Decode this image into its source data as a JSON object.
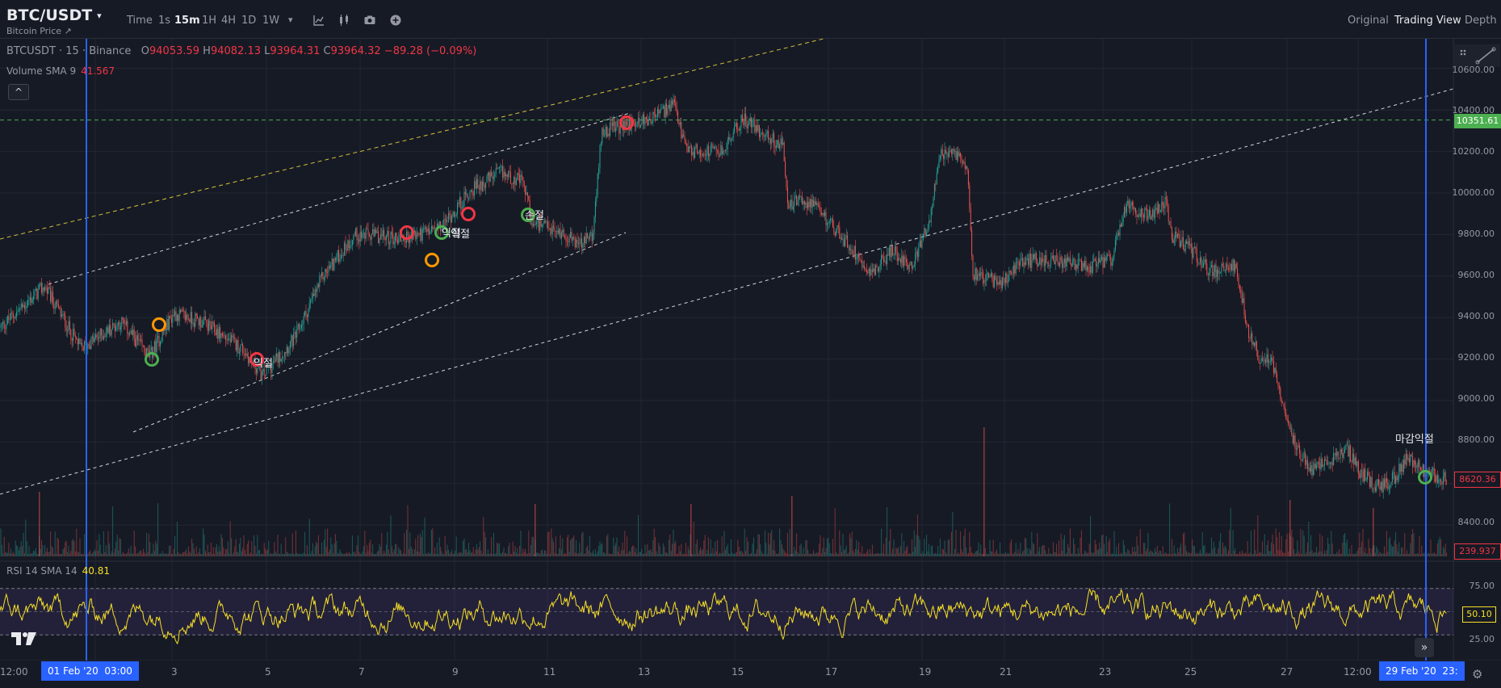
{
  "header": {
    "symbol": "BTC/USDT",
    "caret": "▾",
    "subtitle": "Bitcoin Price ↗",
    "timeframes": [
      "Time",
      "1s",
      "15m",
      "1H",
      "4H",
      "1D",
      "1W"
    ],
    "active_timeframe": "15m",
    "more_caret": "▾",
    "right_tabs": [
      "Original",
      "Trading View",
      "Depth"
    ],
    "active_right_tab": "Trading View"
  },
  "legend": {
    "name": "BTCUSDT · 15 · Binance",
    "o_key": "O",
    "o_val": "94053.59",
    "h_key": "H",
    "h_val": "94082.13",
    "l_key": "L",
    "l_val": "93964.31",
    "c_key": "C",
    "c_val": "93964.32",
    "change": "−89.28 (−0.09%)",
    "volume_name": "Volume SMA 9",
    "volume_val": "41.567",
    "collapse_icon": "^"
  },
  "rsi": {
    "name": "RSI 14 SMA 14",
    "value": "40.81"
  },
  "price_axis": {
    "ticks": [
      "10600.00",
      "10400.00",
      "10200.00",
      "10000.00",
      "9800.00",
      "9600.00",
      "9400.00",
      "9200.00",
      "9000.00",
      "8800.00",
      "8400.00"
    ],
    "horizontal_line_label": "10351.61",
    "last_price_label": "8620.36",
    "volume_label": "239.937"
  },
  "rsi_axis": {
    "ticks": [
      "75.00",
      "25.00"
    ],
    "value_label": "50.10"
  },
  "time_axis": {
    "ticks": [
      "12:00",
      "3",
      "5",
      "7",
      "9",
      "11",
      "13",
      "15",
      "17",
      "19",
      "21",
      "23",
      "25",
      "27",
      "12:00"
    ],
    "left_highlight": "01 Feb '20",
    "left_highlight_time": "03:00",
    "right_highlight": "29 Feb '20",
    "right_highlight_time": "23:"
  },
  "annotations": [
    "익절",
    "익절",
    "손절",
    "익절",
    "마감익절"
  ],
  "chart_data": {
    "type": "candlestick",
    "horizontal_line": 10351.61,
    "last_price": 8620.36,
    "y_range": [
      8300,
      10650
    ],
    "rsi_range": [
      0,
      100
    ],
    "rsi_bands": [
      25,
      75
    ]
  },
  "colors": {
    "up": "#26a69a",
    "down": "#ef5350",
    "rsi_line": "#f7e028",
    "crosshair": "#2962ff",
    "hline": "#4caf50",
    "marker_green": "#4caf50",
    "marker_red": "#f23645",
    "marker_orange": "#ff9800"
  },
  "icons": [
    "indicator-icon",
    "candle-icon",
    "camera-icon",
    "plus-circle-icon",
    "draw-tool-icon",
    "tradingview-logo-icon",
    "scroll-right-icon",
    "gear-icon"
  ]
}
